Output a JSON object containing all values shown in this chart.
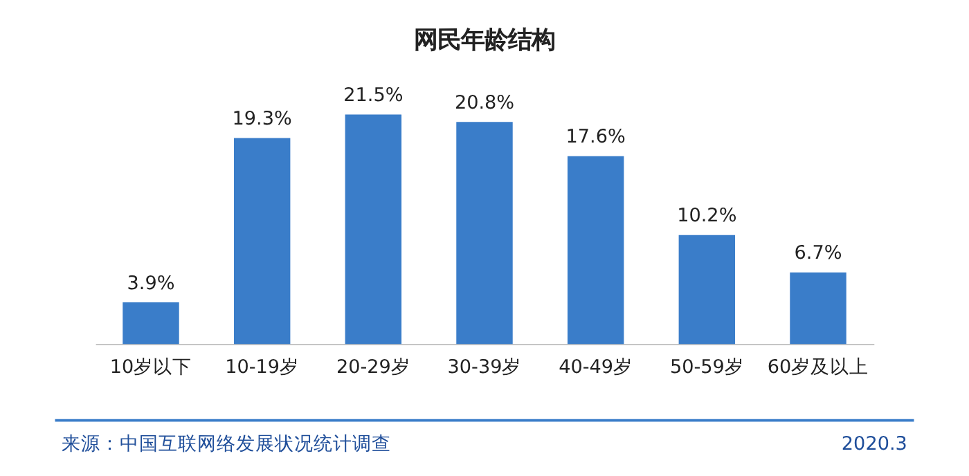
{
  "chart_data": {
    "type": "bar",
    "title": "网民年龄结构",
    "categories": [
      "10岁以下",
      "10-19岁",
      "20-29岁",
      "30-39岁",
      "40-49岁",
      "50-59岁",
      "60岁及以上"
    ],
    "values": [
      3.9,
      19.3,
      21.5,
      20.8,
      17.6,
      10.2,
      6.7
    ],
    "value_labels": [
      "3.9%",
      "19.3%",
      "21.5%",
      "20.8%",
      "17.6%",
      "10.2%",
      "6.7%"
    ],
    "color": "#3a7dc9",
    "grid": false,
    "annotations": [
      "来源：中国互联网络发展状况统计调查",
      "2020.3"
    ]
  }
}
